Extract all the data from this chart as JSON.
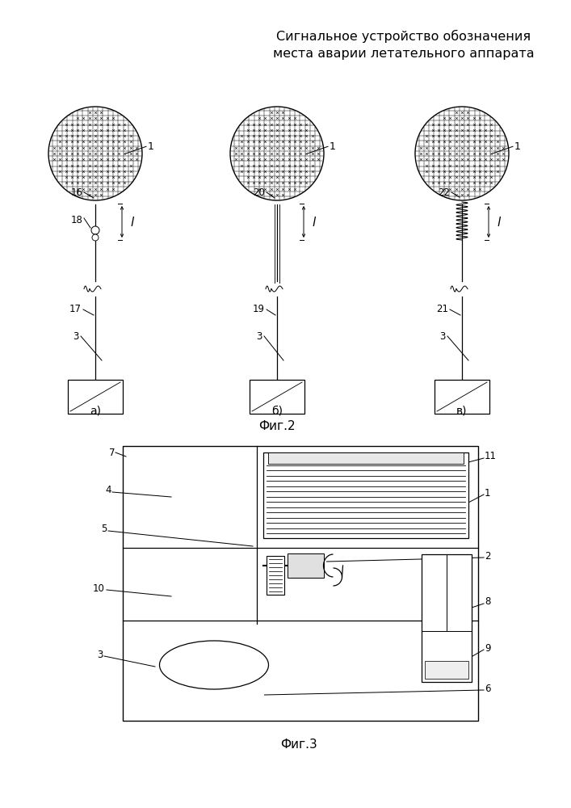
{
  "title_line1": "Сигнальное устройство обозначения",
  "title_line2": "места аварии летательного аппарата",
  "fig2_label": "Фиг.2",
  "fig3_label": "Фиг.3",
  "sub_a": "а)",
  "sub_b": "б)",
  "sub_v": "в)",
  "bg_color": "#ffffff",
  "line_color": "#000000"
}
